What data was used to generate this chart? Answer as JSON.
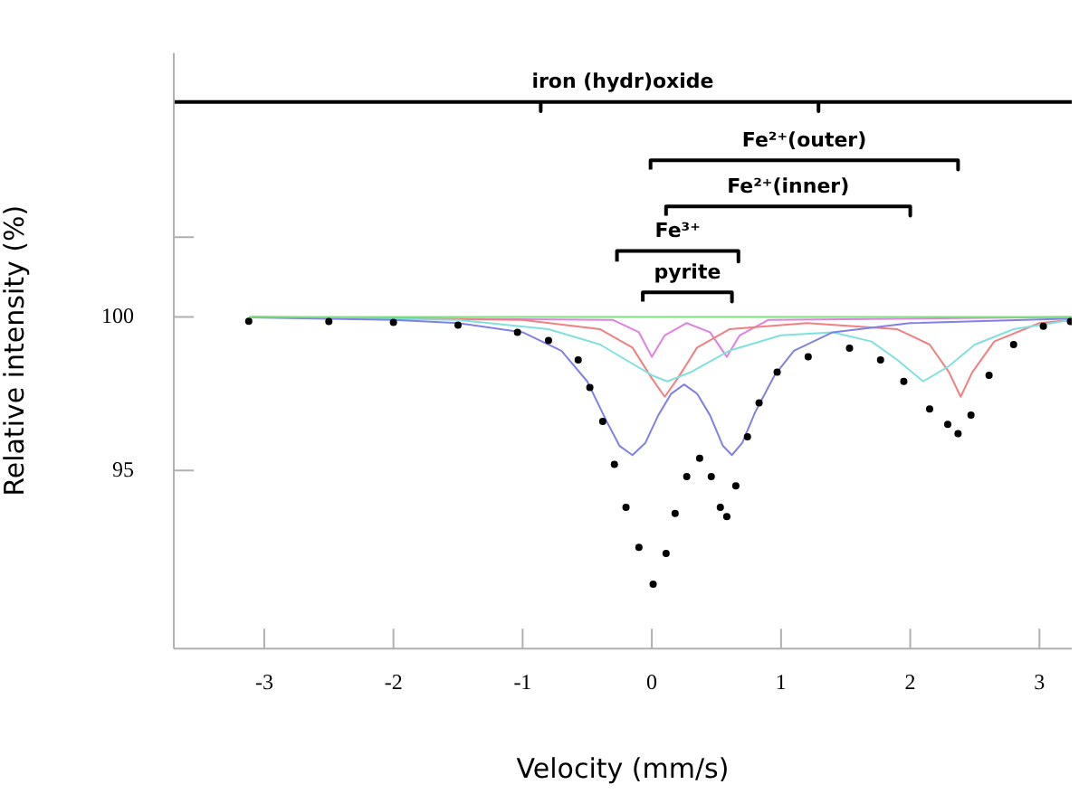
{
  "chart_data": {
    "type": "scatter",
    "xlabel": "Velocity (mm/s)",
    "ylabel": "Relative intensity (%)",
    "xlim": [
      -3.7,
      3.25
    ],
    "ylim": [
      89.2,
      108.6
    ],
    "xticks": [
      -3,
      -2,
      -1,
      0,
      1,
      2,
      3
    ],
    "yticks": [
      {
        "value": 102.6,
        "label": null
      },
      95,
      100
    ],
    "grid": false,
    "legend": false,
    "marker": "none",
    "series": [
      {
        "marker": "circle",
        "color": "#000000",
        "x": [
          -3.12,
          -2.5,
          -2,
          -1.5,
          -1.04,
          -0.8,
          -0.57,
          -0.48,
          -0.38,
          -0.29,
          -0.2,
          -0.1,
          0.01,
          0.11,
          0.18,
          0.27,
          0.37,
          0.46,
          0.53,
          0.58,
          0.65,
          0.74,
          0.83,
          0.97,
          1.21,
          1.53,
          1.77,
          1.95,
          2.15,
          2.29,
          2.37,
          2.47,
          2.61,
          2.8,
          3.03,
          3.24
        ],
        "values": [
          99.86,
          99.85,
          99.82,
          99.73,
          99.5,
          99.23,
          98.6,
          97.7,
          96.6,
          95.2,
          93.8,
          92.5,
          91.3,
          92.3,
          93.6,
          94.8,
          95.4,
          94.8,
          93.8,
          93.5,
          94.5,
          96.1,
          97.2,
          98.2,
          98.7,
          98.98,
          98.6,
          97.9,
          97.0,
          96.5,
          96.2,
          96.8,
          98.1,
          99.1,
          99.7,
          99.85
        ]
      },
      {
        "type": "line",
        "color": "#80e080",
        "x": [
          -3.12,
          3.25
        ],
        "values": [
          100,
          100
        ]
      },
      {
        "type": "line",
        "color": "#8080e8",
        "x": [
          -3.1,
          -2,
          -1.5,
          -1,
          -0.7,
          -0.5,
          -0.35,
          -0.25,
          -0.15,
          -0.05,
          0.05,
          0.15,
          0.25,
          0.35,
          0.45,
          0.55,
          0.62,
          0.7,
          0.8,
          0.95,
          1.1,
          1.4,
          2,
          3.25
        ],
        "values": [
          99.98,
          99.9,
          99.8,
          99.5,
          98.9,
          97.9,
          96.6,
          95.8,
          95.5,
          95.9,
          96.8,
          97.5,
          97.8,
          97.5,
          96.8,
          95.8,
          95.5,
          95.9,
          96.9,
          98.1,
          98.9,
          99.5,
          99.8,
          99.95
        ]
      },
      {
        "type": "line",
        "color": "#80e0e0",
        "x": [
          -3.1,
          -1.5,
          -0.8,
          -0.4,
          -0.2,
          0,
          0.12,
          0.3,
          0.6,
          1,
          1.4,
          1.7,
          1.9,
          2.1,
          2.3,
          2.5,
          2.8,
          3.25
        ],
        "values": [
          100,
          99.9,
          99.6,
          99.1,
          98.6,
          98.1,
          97.9,
          98.2,
          98.9,
          99.4,
          99.5,
          99.2,
          98.6,
          97.9,
          98.4,
          99.1,
          99.6,
          99.9
        ]
      },
      {
        "type": "line",
        "color": "#f08080",
        "x": [
          -3.1,
          -1,
          -0.4,
          -0.15,
          0,
          0.1,
          0.2,
          0.35,
          0.6,
          1.2,
          1.9,
          2.15,
          2.3,
          2.39,
          2.48,
          2.65,
          3,
          3.25
        ],
        "values": [
          100,
          99.9,
          99.6,
          99.0,
          98.0,
          97.4,
          98.0,
          99.0,
          99.6,
          99.8,
          99.6,
          99.1,
          98.2,
          97.4,
          98.2,
          99.2,
          99.8,
          99.9
        ]
      },
      {
        "type": "line",
        "color": "#e080e0",
        "x": [
          -3.1,
          -0.3,
          -0.1,
          0,
          0.1,
          0.27,
          0.45,
          0.58,
          0.68,
          0.9,
          3.25
        ],
        "values": [
          100,
          99.9,
          99.5,
          98.7,
          99.4,
          99.8,
          99.5,
          98.7,
          99.4,
          99.9,
          100
        ]
      },
      {
        "type": "line",
        "name": "iron (hydr)oxide",
        "color": "#000000",
        "x": [
          -3.7,
          -0.86,
          -0.86,
          -0.86,
          1.29,
          1.29,
          1.29,
          3.25
        ],
        "values": [
          107,
          107,
          106.7,
          107,
          107,
          106.7,
          107,
          107
        ]
      },
      {
        "type": "line",
        "name": "Fe²⁺(outer)",
        "color": "#000000",
        "x": [
          -0.01,
          -0.01,
          2.37,
          2.37
        ],
        "values": [
          104.8,
          105.1,
          105.1,
          104.8
        ]
      },
      {
        "type": "line",
        "name": "Fe²⁺(inner)",
        "color": "#000000",
        "x": [
          0.11,
          0.11,
          2.0,
          2.0
        ],
        "values": [
          103.3,
          103.6,
          103.6,
          103.3
        ]
      },
      {
        "type": "line",
        "name": "Fe³⁺",
        "color": "#000000",
        "x": [
          -0.27,
          -0.27,
          0.67,
          0.67
        ],
        "values": [
          101.8,
          102.15,
          102.15,
          101.8
        ]
      },
      {
        "type": "line",
        "name": "pyrite",
        "color": "#000000",
        "x": [
          -0.07,
          -0.07,
          0.62,
          0.62
        ],
        "values": [
          100.5,
          100.8,
          100.8,
          100.5
        ]
      }
    ]
  }
}
